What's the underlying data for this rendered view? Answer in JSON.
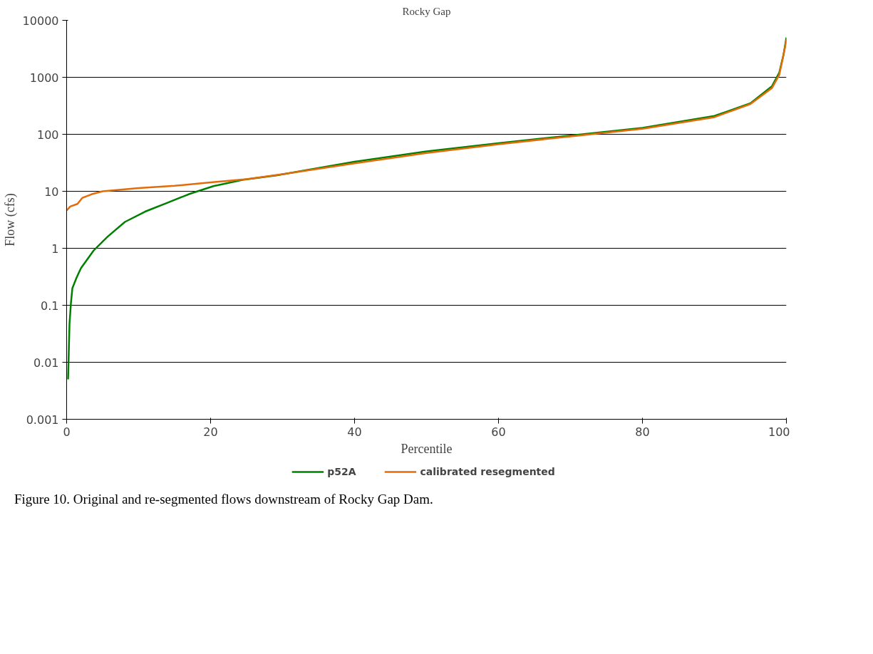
{
  "chart_data": {
    "type": "line",
    "title": "Rocky Gap",
    "xlabel": "Percentile",
    "ylabel": "Flow (cfs)",
    "log": "y",
    "xlim": [
      0,
      100
    ],
    "xticks": [
      0,
      20,
      40,
      60,
      80,
      100
    ],
    "ylim": [
      0.001,
      10000
    ],
    "yticks": [
      0.001,
      0.01,
      0.1,
      1,
      10,
      100,
      1000,
      10000
    ],
    "grid": "y",
    "legend": "bottom",
    "line_style": "solid",
    "marker": "none",
    "series": [
      {
        "name": "p52A",
        "color": "#008000",
        "x": [
          0.2,
          0.4,
          0.6,
          0.8,
          1.4,
          2,
          3.8,
          5.7,
          8.1,
          10.9,
          14,
          17.2,
          20.4,
          24.4,
          29.1,
          40,
          50,
          60,
          70,
          80,
          90,
          95,
          98,
          99,
          99.6,
          100
        ],
        "values": [
          0.005,
          0.047,
          0.11,
          0.2,
          0.31,
          0.45,
          0.93,
          1.6,
          2.9,
          4.4,
          6.3,
          9.1,
          12.3,
          15.8,
          19,
          33,
          50,
          70,
          95,
          130,
          210,
          350,
          700,
          1200,
          2500,
          5000
        ]
      },
      {
        "name": "calibrated resegmented",
        "color": "#e36c09",
        "x": [
          0,
          0.5,
          1.5,
          2.2,
          3.5,
          5,
          10,
          15,
          20,
          25,
          30,
          40,
          50,
          60,
          70,
          80,
          90,
          95,
          98,
          99,
          99.6,
          100
        ],
        "values": [
          4.6,
          5.4,
          6.0,
          7.7,
          8.9,
          10,
          11.4,
          12.5,
          14.3,
          16.3,
          20,
          31,
          47,
          67,
          92,
          125,
          200,
          340,
          650,
          1100,
          2500,
          4500
        ]
      }
    ],
    "annotations": [
      "Figure 10. Original and re-segmented flows downstream of Rocky Gap Dam."
    ]
  }
}
